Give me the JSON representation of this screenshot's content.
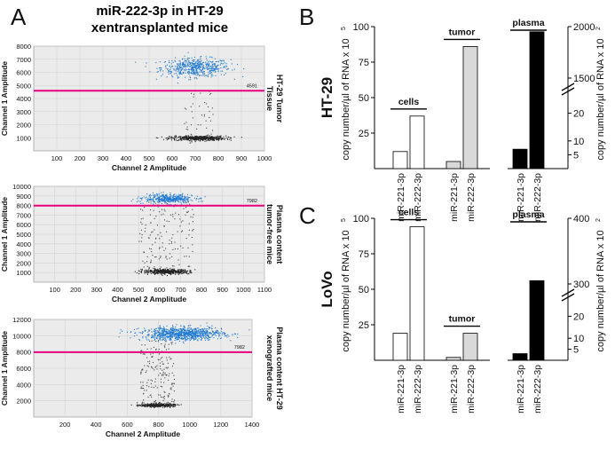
{
  "figure": {
    "labels": {
      "A": "A",
      "B": "B",
      "C": "C"
    },
    "title_lines": [
      "miR-222-3p in HT-29",
      "xentransplanted mice"
    ]
  },
  "chart_data": [
    {
      "id": "ddpcr_tumor",
      "type": "scatter",
      "title": "",
      "xlabel": "Channel 2 Amplitude",
      "ylabel": "Channel 1 Amplitude",
      "side_label": [
        "HT-29 Tumor",
        "Tissue"
      ],
      "xlim": [
        0,
        1000
      ],
      "ylim": [
        0,
        8000
      ],
      "xticks": [
        100,
        200,
        300,
        400,
        500,
        600,
        700,
        800,
        900,
        1000
      ],
      "yticks": [
        1000,
        2000,
        3000,
        4000,
        5000,
        6000,
        7000,
        8000
      ],
      "threshold": 4591,
      "threshold_label": "4591",
      "threshold_color": "#e6007e",
      "clusters": [
        {
          "name": "positive",
          "color": "#1f7ad1",
          "cx": 700,
          "cy": 6400,
          "sx": 75,
          "sy": 350,
          "n": 520
        },
        {
          "name": "negative",
          "color": "#222222",
          "cx": 710,
          "cy": 1000,
          "sx": 60,
          "sy": 90,
          "n": 500
        },
        {
          "name": "rain",
          "color": "#444444",
          "x_range": [
            650,
            780
          ],
          "y_range": [
            1100,
            5800
          ],
          "n": 45
        }
      ]
    },
    {
      "id": "ddpcr_plasma_free",
      "type": "scatter",
      "title": "",
      "xlabel": "Channel 2 Amplitude",
      "ylabel": "Channel 1 Amplitude",
      "side_label": [
        "Plasma content",
        "tumor-free mice"
      ],
      "xlim": [
        0,
        1100
      ],
      "ylim": [
        0,
        10000
      ],
      "xticks": [
        100,
        200,
        300,
        400,
        500,
        600,
        700,
        800,
        900,
        1000,
        1100
      ],
      "yticks": [
        1000,
        2000,
        3000,
        4000,
        5000,
        6000,
        7000,
        8000,
        9000,
        10000
      ],
      "threshold": 7982,
      "threshold_label": "7982",
      "threshold_color": "#e6007e",
      "clusters": [
        {
          "name": "positive",
          "color": "#1f7ad1",
          "cx": 640,
          "cy": 8750,
          "sx": 60,
          "sy": 230,
          "n": 420
        },
        {
          "name": "negative",
          "color": "#222222",
          "cx": 630,
          "cy": 1150,
          "sx": 55,
          "sy": 120,
          "n": 450
        },
        {
          "name": "rain",
          "color": "#444444",
          "x_range": [
            500,
            760
          ],
          "y_range": [
            1300,
            8400
          ],
          "n": 160
        }
      ]
    },
    {
      "id": "ddpcr_plasma_xeno",
      "type": "scatter",
      "title": "",
      "xlabel": "Channel 2 Amplitude",
      "ylabel": "Channel 1 Amplitude",
      "side_label": [
        "Plasma content HT-29",
        "xenografted mice"
      ],
      "xlim": [
        0,
        1400
      ],
      "ylim": [
        0,
        12000
      ],
      "xticks": [
        200,
        400,
        600,
        800,
        1000,
        1200,
        1400
      ],
      "yticks": [
        2000,
        4000,
        6000,
        8000,
        10000,
        12000
      ],
      "threshold": 7982,
      "threshold_label": "7982",
      "threshold_color": "#e6007e",
      "clusters": [
        {
          "name": "positive",
          "color": "#1f7ad1",
          "cx": 950,
          "cy": 10300,
          "sx": 130,
          "sy": 400,
          "n": 900
        },
        {
          "name": "negative",
          "color": "#222222",
          "cx": 790,
          "cy": 1500,
          "sx": 55,
          "sy": 100,
          "n": 400
        },
        {
          "name": "rain",
          "color": "#444444",
          "x_range": [
            680,
            900
          ],
          "y_range": [
            1700,
            9500
          ],
          "n": 180
        }
      ]
    },
    {
      "id": "panel_B",
      "type": "bar",
      "row_label": "HT-29",
      "ylabel_left": "copy number/µl of RNA x 10",
      "ylabel_left_exp": "5",
      "ylabel_right": "copy number/µl of RNA x 10",
      "ylabel_right_exp": "2",
      "left_yticks": [
        25,
        50,
        75,
        100
      ],
      "left_ylim": [
        0,
        100
      ],
      "right_yticks_low": [
        5,
        10,
        20
      ],
      "right_yticks_high": [
        1500,
        2000
      ],
      "groups": [
        {
          "label": "cells",
          "fill": "#ffffff",
          "axis": "left",
          "categories": [
            "miR-221-3p",
            "miR-222-3p"
          ],
          "values": [
            12,
            37
          ]
        },
        {
          "label": "tumor",
          "fill": "#d9d9d9",
          "axis": "left",
          "categories": [
            "miR-221-3p",
            "miR-222-3p"
          ],
          "values": [
            5,
            86
          ]
        },
        {
          "label": "plasma",
          "fill": "#000000",
          "axis": "right",
          "categories": [
            "miR-221-3p",
            "miR-222-3p"
          ],
          "values": [
            7,
            1950
          ]
        }
      ]
    },
    {
      "id": "panel_C",
      "type": "bar",
      "row_label": "LoVo",
      "ylabel_left": "copy number/µl of RNA x 10",
      "ylabel_left_exp": "5",
      "ylabel_right": "copy number/µl of RNA x 10",
      "ylabel_right_exp": "2",
      "left_yticks": [
        25,
        50,
        75,
        100
      ],
      "left_ylim": [
        0,
        100
      ],
      "right_yticks_low": [
        5,
        10,
        20
      ],
      "right_yticks_high": [
        300,
        400
      ],
      "groups": [
        {
          "label": "cells",
          "fill": "#ffffff",
          "axis": "left",
          "categories": [
            "miR-221-3p",
            "miR-222-3p"
          ],
          "values": [
            19,
            94
          ]
        },
        {
          "label": "tumor",
          "fill": "#d9d9d9",
          "axis": "left",
          "categories": [
            "miR-221-3p",
            "miR-222-3p"
          ],
          "values": [
            2,
            19
          ]
        },
        {
          "label": "plasma",
          "fill": "#000000",
          "axis": "right",
          "categories": [
            "miR-221-3p",
            "miR-222-3p"
          ],
          "values": [
            3,
            305
          ]
        }
      ]
    }
  ]
}
